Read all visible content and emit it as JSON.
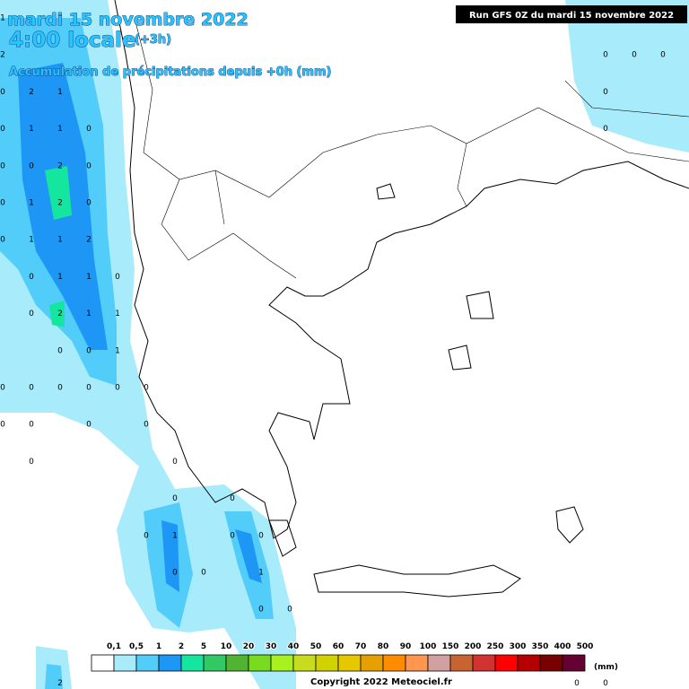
{
  "header": {
    "date": "mardi 15 novembre 2022",
    "time": "4:00 locale",
    "offset": "(+3h)",
    "subtitle": "Accumulation de précipitations depuis +0h (mm)",
    "run": "Run GFS 0Z du mardi 15 novembre 2022"
  },
  "grid": {
    "rows": [
      [
        1,
        null,
        null,
        null,
        null,
        null,
        null,
        null,
        null,
        null,
        null,
        null,
        null,
        null,
        null,
        null,
        null,
        null,
        null,
        null,
        null,
        null,
        null,
        null
      ],
      [
        2,
        null,
        null,
        null,
        null,
        null,
        null,
        null,
        null,
        null,
        null,
        null,
        null,
        null,
        null,
        null,
        null,
        null,
        null,
        null,
        null,
        0,
        0,
        0
      ],
      [
        0,
        2,
        1,
        null,
        null,
        null,
        null,
        null,
        null,
        null,
        null,
        null,
        null,
        null,
        null,
        null,
        null,
        null,
        null,
        null,
        null,
        0,
        null,
        null
      ],
      [
        0,
        1,
        1,
        0,
        null,
        null,
        null,
        null,
        null,
        null,
        null,
        null,
        null,
        null,
        null,
        null,
        null,
        null,
        null,
        null,
        null,
        0,
        null,
        null
      ],
      [
        0,
        0,
        2,
        0,
        null,
        null,
        null,
        null,
        null,
        null,
        null,
        null,
        null,
        null,
        null,
        null,
        null,
        null,
        null,
        null,
        null,
        null,
        null,
        null
      ],
      [
        0,
        1,
        2,
        0,
        null,
        null,
        null,
        null,
        null,
        null,
        null,
        null,
        null,
        null,
        null,
        null,
        null,
        null,
        null,
        null,
        null,
        null,
        null,
        null
      ],
      [
        0,
        1,
        1,
        2,
        null,
        null,
        null,
        null,
        null,
        null,
        null,
        null,
        null,
        null,
        null,
        null,
        null,
        null,
        null,
        null,
        null,
        null,
        null,
        null
      ],
      [
        null,
        0,
        1,
        1,
        0,
        null,
        null,
        null,
        null,
        null,
        null,
        null,
        null,
        null,
        null,
        null,
        null,
        null,
        null,
        null,
        null,
        null,
        null,
        null
      ],
      [
        null,
        0,
        2,
        1,
        1,
        null,
        null,
        null,
        null,
        null,
        null,
        null,
        null,
        null,
        null,
        null,
        null,
        null,
        null,
        null,
        null,
        null,
        null,
        null
      ],
      [
        null,
        null,
        0,
        0,
        1,
        null,
        null,
        null,
        null,
        null,
        null,
        null,
        null,
        null,
        null,
        null,
        null,
        null,
        null,
        null,
        null,
        null,
        null,
        null
      ],
      [
        0,
        0,
        0,
        0,
        0,
        0,
        null,
        null,
        null,
        null,
        null,
        null,
        null,
        null,
        null,
        null,
        null,
        null,
        null,
        null,
        null,
        null,
        null,
        null
      ],
      [
        0,
        0,
        null,
        0,
        null,
        0,
        null,
        null,
        null,
        null,
        null,
        null,
        null,
        null,
        null,
        null,
        null,
        null,
        null,
        null,
        null,
        null,
        null,
        null
      ],
      [
        null,
        0,
        null,
        null,
        null,
        null,
        0,
        null,
        null,
        null,
        null,
        null,
        null,
        null,
        null,
        null,
        null,
        null,
        null,
        null,
        null,
        null,
        null,
        null
      ],
      [
        null,
        null,
        null,
        null,
        null,
        null,
        0,
        null,
        0,
        null,
        null,
        null,
        null,
        null,
        null,
        null,
        null,
        null,
        null,
        null,
        null,
        null,
        null,
        null
      ],
      [
        null,
        null,
        null,
        null,
        null,
        0,
        1,
        null,
        0,
        0,
        null,
        null,
        null,
        null,
        null,
        null,
        null,
        null,
        null,
        null,
        null,
        null,
        null,
        null
      ],
      [
        null,
        null,
        null,
        null,
        null,
        null,
        0,
        0,
        null,
        1,
        null,
        null,
        null,
        null,
        null,
        null,
        null,
        null,
        null,
        null,
        null,
        null,
        null,
        null
      ],
      [
        null,
        null,
        null,
        null,
        null,
        null,
        null,
        null,
        null,
        0,
        0,
        null,
        null,
        null,
        null,
        null,
        null,
        null,
        null,
        null,
        null,
        null,
        null,
        null
      ],
      [
        null,
        null,
        null,
        null,
        null,
        null,
        null,
        null,
        null,
        null,
        null,
        null,
        null,
        null,
        null,
        null,
        null,
        null,
        null,
        null,
        null,
        null,
        null,
        null
      ],
      [
        null,
        null,
        2,
        null,
        null,
        null,
        null,
        null,
        null,
        null,
        null,
        null,
        null,
        null,
        null,
        null,
        null,
        null,
        null,
        null,
        0,
        0,
        null,
        null
      ]
    ]
  },
  "legend": {
    "labels": [
      "0,1",
      "0,5",
      "1",
      "2",
      "5",
      "10",
      "20",
      "30",
      "40",
      "50",
      "60",
      "70",
      "80",
      "90",
      "100",
      "150",
      "200",
      "250",
      "300",
      "350",
      "400",
      "500"
    ],
    "colors": [
      "#ffffff",
      "#a8ecfc",
      "#52cdfa",
      "#1e96f5",
      "#14e6a0",
      "#32c864",
      "#50b432",
      "#78dc1e",
      "#a8f01e",
      "#c8dc1e",
      "#d2d200",
      "#e6c800",
      "#e6a000",
      "#ff8c00",
      "#ff9650",
      "#d2a0a0",
      "#c86432",
      "#d23232",
      "#ff0000",
      "#b40000",
      "#780000",
      "#640032",
      "#8c50ff"
    ],
    "unit": "(mm)"
  },
  "footer": {
    "copyright": "Copyright 2022 Meteociel.fr"
  }
}
